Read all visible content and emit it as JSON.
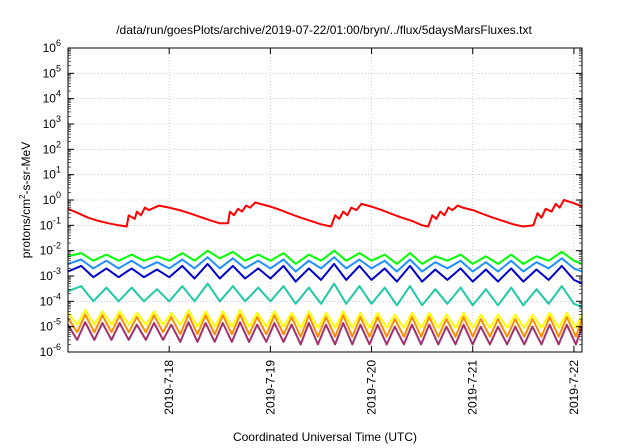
{
  "chart_data": {
    "type": "line",
    "title": "/data/run/goesPlots/archive/2019-07-22/01:00/bryn/../flux/5daysMarsFluxes.txt",
    "xlabel": "Coordinated Universal Time (UTC)",
    "ylabel": "protons/cm2-s-sr-MeV",
    "ylabel_parts": {
      "main": "protons/cm",
      "sup": "2",
      "rest": "-s-sr-MeV"
    },
    "x_units": "days (July 2019)",
    "xlim": [
      17.0,
      22.08
    ],
    "x_ticks": [
      {
        "value": 18,
        "label": "2019-7-18"
      },
      {
        "value": 19,
        "label": "2019-7-19"
      },
      {
        "value": 20,
        "label": "2019-7-20"
      },
      {
        "value": 21,
        "label": "2019-7-21"
      },
      {
        "value": 22,
        "label": "2019-7-22"
      }
    ],
    "y_scale": "log",
    "ylim": [
      1e-06,
      1000000.0
    ],
    "y_tick_exponents": [
      -6,
      -5,
      -4,
      -3,
      -2,
      -1,
      0,
      1,
      2,
      3,
      4,
      5,
      6
    ],
    "y_tick_base": "10",
    "grid": true,
    "legend": "none",
    "series": [
      {
        "color": "#ff0000",
        "x": [
          17.0,
          17.1,
          17.2,
          17.3,
          17.4,
          17.5,
          17.58,
          17.6,
          17.66,
          17.68,
          17.72,
          17.76,
          17.8,
          17.9,
          18.0,
          18.1,
          18.2,
          18.3,
          18.4,
          18.5,
          18.58,
          18.6,
          18.64,
          18.68,
          18.72,
          18.76,
          18.8,
          18.85,
          18.9,
          19.0,
          19.1,
          19.2,
          19.3,
          19.4,
          19.5,
          19.6,
          19.64,
          19.68,
          19.72,
          19.76,
          19.8,
          19.85,
          19.9,
          20.0,
          20.1,
          20.2,
          20.3,
          20.4,
          20.5,
          20.56,
          20.6,
          20.64,
          20.68,
          20.72,
          20.76,
          20.8,
          20.85,
          20.9,
          21.0,
          21.1,
          21.2,
          21.3,
          21.4,
          21.5,
          21.6,
          21.64,
          21.68,
          21.72,
          21.78,
          21.82,
          21.86,
          21.9,
          22.0,
          22.08
        ],
        "y": [
          0.45,
          0.3,
          0.2,
          0.15,
          0.12,
          0.1,
          0.09,
          0.25,
          0.18,
          0.35,
          0.25,
          0.5,
          0.4,
          0.6,
          0.5,
          0.4,
          0.3,
          0.22,
          0.16,
          0.12,
          0.12,
          0.35,
          0.25,
          0.45,
          0.35,
          0.6,
          0.5,
          0.8,
          0.7,
          0.55,
          0.4,
          0.28,
          0.2,
          0.15,
          0.11,
          0.09,
          0.25,
          0.18,
          0.35,
          0.25,
          0.5,
          0.4,
          0.7,
          0.55,
          0.4,
          0.28,
          0.2,
          0.15,
          0.1,
          0.09,
          0.25,
          0.18,
          0.35,
          0.25,
          0.5,
          0.4,
          0.6,
          0.5,
          0.4,
          0.28,
          0.2,
          0.15,
          0.11,
          0.09,
          0.1,
          0.3,
          0.2,
          0.45,
          0.35,
          0.7,
          0.5,
          1.0,
          0.75,
          0.55
        ]
      },
      {
        "color": "#00ff00",
        "x": [
          17.0,
          17.13,
          17.25,
          17.38,
          17.5,
          17.63,
          17.75,
          17.88,
          18.0,
          18.13,
          18.25,
          18.38,
          18.5,
          18.63,
          18.75,
          18.88,
          19.0,
          19.13,
          19.25,
          19.38,
          19.5,
          19.63,
          19.75,
          19.88,
          20.0,
          20.13,
          20.25,
          20.38,
          20.5,
          20.63,
          20.75,
          20.88,
          21.0,
          21.13,
          21.25,
          21.38,
          21.5,
          21.63,
          21.75,
          21.88,
          22.0,
          22.08
        ],
        "y": [
          0.006,
          0.008,
          0.004,
          0.007,
          0.004,
          0.007,
          0.004,
          0.006,
          0.004,
          0.008,
          0.004,
          0.01,
          0.005,
          0.009,
          0.004,
          0.007,
          0.004,
          0.008,
          0.003,
          0.007,
          0.004,
          0.01,
          0.004,
          0.008,
          0.004,
          0.007,
          0.003,
          0.008,
          0.003,
          0.006,
          0.004,
          0.007,
          0.003,
          0.006,
          0.003,
          0.007,
          0.003,
          0.006,
          0.004,
          0.009,
          0.004,
          0.003
        ]
      },
      {
        "color": "#1e90ff",
        "x": [
          17.0,
          17.13,
          17.25,
          17.38,
          17.5,
          17.63,
          17.75,
          17.88,
          18.0,
          18.13,
          18.25,
          18.38,
          18.5,
          18.63,
          18.75,
          18.88,
          19.0,
          19.13,
          19.25,
          19.38,
          19.5,
          19.63,
          19.75,
          19.88,
          20.0,
          20.13,
          20.25,
          20.38,
          20.5,
          20.63,
          20.75,
          20.88,
          21.0,
          21.13,
          21.25,
          21.38,
          21.5,
          21.63,
          21.75,
          21.88,
          22.0,
          22.08
        ],
        "y": [
          0.003,
          0.0045,
          0.002,
          0.004,
          0.002,
          0.004,
          0.002,
          0.0035,
          0.002,
          0.0045,
          0.002,
          0.0055,
          0.002,
          0.005,
          0.002,
          0.004,
          0.002,
          0.0045,
          0.0015,
          0.004,
          0.002,
          0.0055,
          0.002,
          0.0045,
          0.002,
          0.004,
          0.0015,
          0.0045,
          0.0015,
          0.0035,
          0.002,
          0.004,
          0.0015,
          0.0035,
          0.0015,
          0.004,
          0.0015,
          0.0035,
          0.002,
          0.005,
          0.002,
          0.0015
        ]
      },
      {
        "color": "#0000cd",
        "x": [
          17.0,
          17.13,
          17.25,
          17.38,
          17.5,
          17.63,
          17.75,
          17.88,
          18.0,
          18.13,
          18.25,
          18.38,
          18.5,
          18.63,
          18.75,
          18.88,
          19.0,
          19.13,
          19.25,
          19.38,
          19.5,
          19.63,
          19.75,
          19.88,
          20.0,
          20.13,
          20.25,
          20.38,
          20.5,
          20.63,
          20.75,
          20.88,
          21.0,
          21.13,
          21.25,
          21.38,
          21.5,
          21.63,
          21.75,
          21.88,
          22.0,
          22.08
        ],
        "y": [
          0.0015,
          0.0025,
          0.0009,
          0.002,
          0.0009,
          0.002,
          0.0009,
          0.0018,
          0.0009,
          0.0025,
          0.0008,
          0.003,
          0.0008,
          0.0025,
          0.0008,
          0.002,
          0.0008,
          0.0025,
          0.0006,
          0.002,
          0.0007,
          0.003,
          0.0007,
          0.0025,
          0.0007,
          0.002,
          0.0006,
          0.0025,
          0.0006,
          0.0018,
          0.0007,
          0.002,
          0.0006,
          0.0018,
          0.0006,
          0.002,
          0.0006,
          0.0018,
          0.0007,
          0.0025,
          0.0007,
          0.0005
        ]
      },
      {
        "color": "#20c9a6",
        "x": [
          17.0,
          17.13,
          17.25,
          17.38,
          17.5,
          17.63,
          17.75,
          17.88,
          18.0,
          18.13,
          18.25,
          18.38,
          18.5,
          18.63,
          18.75,
          18.88,
          19.0,
          19.13,
          19.25,
          19.38,
          19.5,
          19.63,
          19.75,
          19.88,
          20.0,
          20.13,
          20.25,
          20.38,
          20.5,
          20.63,
          20.75,
          20.88,
          21.0,
          21.13,
          21.25,
          21.38,
          21.5,
          21.63,
          21.75,
          21.88,
          22.0,
          22.08
        ],
        "y": [
          0.00025,
          0.0004,
          0.0001,
          0.00035,
          0.0001,
          0.00035,
          0.0001,
          0.0003,
          0.0001,
          0.0004,
          0.0001,
          0.0005,
          0.0001,
          0.0004,
          0.0001,
          0.00035,
          0.0001,
          0.0004,
          8e-05,
          0.00035,
          8e-05,
          0.0005,
          8e-05,
          0.0004,
          8e-05,
          0.00035,
          7e-05,
          0.0004,
          7e-05,
          0.0003,
          8e-05,
          0.00035,
          7e-05,
          0.0003,
          7e-05,
          0.00035,
          7e-05,
          0.0003,
          8e-05,
          0.0004,
          8e-05,
          6e-05
        ]
      },
      {
        "color": "#ffff00",
        "x": [
          17.0,
          17.09,
          17.17,
          17.26,
          17.34,
          17.43,
          17.51,
          17.6,
          17.68,
          17.77,
          17.85,
          17.94,
          18.02,
          18.11,
          18.19,
          18.28,
          18.36,
          18.45,
          18.53,
          18.62,
          18.7,
          18.79,
          18.87,
          18.96,
          19.04,
          19.13,
          19.21,
          19.3,
          19.38,
          19.47,
          19.55,
          19.64,
          19.72,
          19.81,
          19.89,
          19.98,
          20.06,
          20.15,
          20.23,
          20.32,
          20.4,
          20.49,
          20.57,
          20.66,
          20.74,
          20.83,
          20.91,
          21.0,
          21.08,
          21.17,
          21.25,
          21.34,
          21.42,
          21.51,
          21.59,
          21.68,
          21.76,
          21.85,
          21.93,
          22.02,
          22.08
        ],
        "y": [
          3.5e-05,
          1.2e-05,
          4.5e-05,
          1.2e-05,
          4e-05,
          1.2e-05,
          4e-05,
          1.2e-05,
          3.5e-05,
          1.2e-05,
          4e-05,
          1.2e-05,
          3.5e-05,
          1.2e-05,
          4.5e-05,
          1e-05,
          4e-05,
          1e-05,
          4e-05,
          1e-05,
          4.5e-05,
          1e-05,
          3.5e-05,
          1e-05,
          4e-05,
          1e-05,
          3.5e-05,
          9e-06,
          4e-05,
          9e-06,
          3.5e-05,
          9e-06,
          4e-05,
          9e-06,
          3.5e-05,
          9e-06,
          3.5e-05,
          9e-06,
          3e-05,
          9e-06,
          3.5e-05,
          9e-06,
          3.5e-05,
          9e-06,
          3e-05,
          9e-06,
          3.5e-05,
          9e-06,
          3e-05,
          9e-06,
          3e-05,
          9e-06,
          3e-05,
          9e-06,
          3e-05,
          9e-06,
          3.5e-05,
          9e-06,
          3.5e-05,
          9e-06,
          3e-05
        ]
      },
      {
        "color": "#ff8c00",
        "x": [
          17.0,
          17.09,
          17.17,
          17.26,
          17.34,
          17.43,
          17.51,
          17.6,
          17.68,
          17.77,
          17.85,
          17.94,
          18.02,
          18.11,
          18.19,
          18.28,
          18.36,
          18.45,
          18.53,
          18.62,
          18.7,
          18.79,
          18.87,
          18.96,
          19.04,
          19.13,
          19.21,
          19.3,
          19.38,
          19.47,
          19.55,
          19.64,
          19.72,
          19.81,
          19.89,
          19.98,
          20.06,
          20.15,
          20.23,
          20.32,
          20.4,
          20.49,
          20.57,
          20.66,
          20.74,
          20.83,
          20.91,
          21.0,
          21.08,
          21.17,
          21.25,
          21.34,
          21.42,
          21.51,
          21.59,
          21.68,
          21.76,
          21.85,
          21.93,
          22.02,
          22.08
        ],
        "y": [
          2.2e-05,
          6e-06,
          3e-05,
          6e-06,
          2.8e-05,
          6e-06,
          2.8e-05,
          6e-06,
          2.4e-05,
          6e-06,
          2.8e-05,
          6e-06,
          2.4e-05,
          5e-06,
          3e-05,
          5e-06,
          2.8e-05,
          5e-06,
          2.8e-05,
          5e-06,
          3e-05,
          5e-06,
          2.4e-05,
          5e-06,
          2.8e-05,
          5e-06,
          2.4e-05,
          4e-06,
          2.8e-05,
          4e-06,
          2.4e-05,
          4e-06,
          2.8e-05,
          4e-06,
          2.4e-05,
          4e-06,
          2.4e-05,
          4e-06,
          2e-05,
          4e-06,
          2.4e-05,
          4e-06,
          2.4e-05,
          4e-06,
          2e-05,
          4e-06,
          2.4e-05,
          4e-06,
          2e-05,
          4e-06,
          2e-05,
          4e-06,
          2e-05,
          4e-06,
          2e-05,
          4e-06,
          2.4e-05,
          4e-06,
          2.4e-05,
          4e-06,
          2e-05
        ]
      },
      {
        "color": "#a0306e",
        "x": [
          17.0,
          17.09,
          17.17,
          17.26,
          17.34,
          17.43,
          17.51,
          17.6,
          17.68,
          17.77,
          17.85,
          17.94,
          18.02,
          18.11,
          18.19,
          18.28,
          18.36,
          18.45,
          18.53,
          18.62,
          18.7,
          18.79,
          18.87,
          18.96,
          19.04,
          19.13,
          19.21,
          19.3,
          19.38,
          19.47,
          19.55,
          19.64,
          19.72,
          19.81,
          19.89,
          19.98,
          20.06,
          20.15,
          20.23,
          20.32,
          20.4,
          20.49,
          20.57,
          20.66,
          20.74,
          20.83,
          20.91,
          21.0,
          21.08,
          21.17,
          21.25,
          21.34,
          21.42,
          21.51,
          21.59,
          21.68,
          21.76,
          21.85,
          21.93,
          22.02,
          22.08
        ],
        "y": [
          1.2e-05,
          3e-06,
          1.5e-05,
          3e-06,
          1.4e-05,
          3e-06,
          1.4e-05,
          3e-06,
          1.2e-05,
          3e-06,
          1.4e-05,
          3e-06,
          1.2e-05,
          2.5e-06,
          1.5e-05,
          2.5e-06,
          1.4e-05,
          2.5e-06,
          1.4e-05,
          2.5e-06,
          1.5e-05,
          2.5e-06,
          1.2e-05,
          2.5e-06,
          1.4e-05,
          2.5e-06,
          1.2e-05,
          2e-06,
          1.4e-05,
          2e-06,
          1.2e-05,
          2e-06,
          1.4e-05,
          2e-06,
          1.2e-05,
          2e-06,
          1.2e-05,
          2e-06,
          1e-05,
          2e-06,
          1.2e-05,
          2e-06,
          1.2e-05,
          2e-06,
          1e-05,
          2e-06,
          1.2e-05,
          2e-06,
          1e-05,
          2e-06,
          1e-05,
          2e-06,
          1e-05,
          2e-06,
          1e-05,
          2e-06,
          1.2e-05,
          2e-06,
          1.2e-05,
          2e-06,
          1e-05
        ]
      }
    ]
  }
}
